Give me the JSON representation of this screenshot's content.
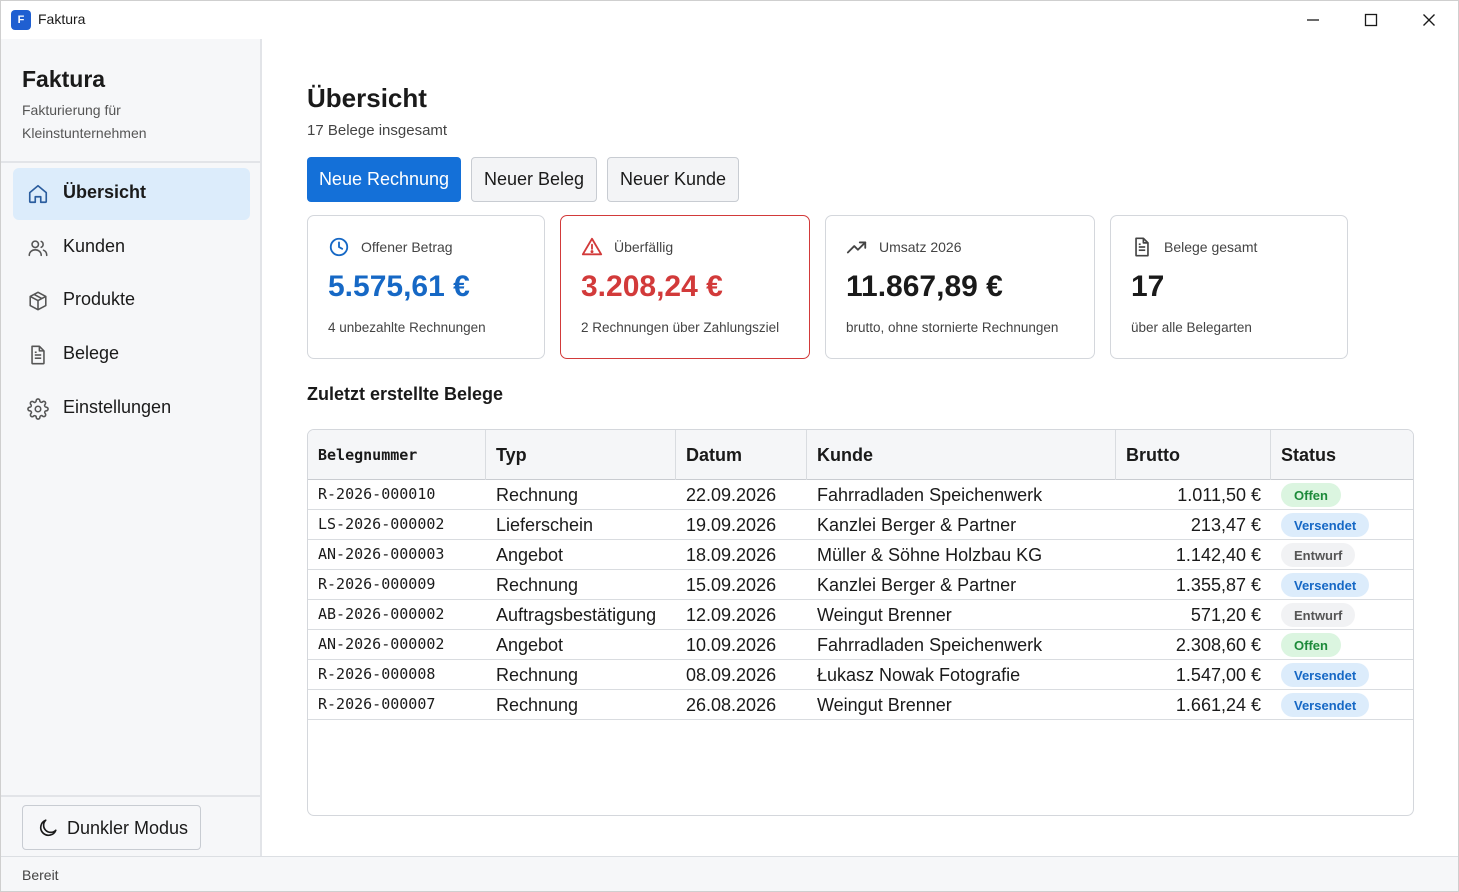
{
  "window": {
    "title": "Faktura",
    "app_icon_letter": "F"
  },
  "sidebar": {
    "brand_title": "Faktura",
    "brand_subtitle": "Fakturierung für Kleinstunternehmen",
    "items": [
      {
        "label": "Übersicht",
        "icon": "home-icon",
        "active": true
      },
      {
        "label": "Kunden",
        "icon": "users-icon",
        "active": false
      },
      {
        "label": "Produkte",
        "icon": "box-icon",
        "active": false
      },
      {
        "label": "Belege",
        "icon": "document-icon",
        "active": false
      },
      {
        "label": "Einstellungen",
        "icon": "gear-icon",
        "active": false
      }
    ],
    "dark_mode_label": "Dunkler Modus"
  },
  "main": {
    "title": "Übersicht",
    "subtitle": "17 Belege insgesamt",
    "buttons": {
      "new_invoice": "Neue Rechnung",
      "new_receipt": "Neuer Beleg",
      "new_customer": "Neuer Kunde"
    },
    "cards": [
      {
        "label": "Offener Betrag",
        "value": "5.575,61 €",
        "note": "4 unbezahlte Rechnungen",
        "icon": "clock-icon",
        "color": "#1668c5"
      },
      {
        "label": "Überfällig",
        "value": "3.208,24 €",
        "note": "2 Rechnungen über Zahlungsziel",
        "icon": "warning-icon",
        "color": "#d23a3a"
      },
      {
        "label": "Umsatz 2026",
        "value": "11.867,89 €",
        "note": "brutto, ohne stornierte Rechnungen",
        "icon": "trending-up-icon",
        "color": "#1a1a1a"
      },
      {
        "label": "Belege gesamt",
        "value": "17",
        "note": "über alle Belegarten",
        "icon": "document-icon",
        "color": "#1a1a1a"
      }
    ],
    "recent_title": "Zuletzt erstellte Belege",
    "table": {
      "headers": [
        "Belegnummer",
        "Typ",
        "Datum",
        "Kunde",
        "Brutto",
        "Status"
      ],
      "rows": [
        {
          "number": "R-2026-000010",
          "type": "Rechnung",
          "date": "22.09.2026",
          "customer": "Fahrradladen Speichenwerk",
          "gross": "1.011,50 €",
          "status": "Offen",
          "status_kind": "offen"
        },
        {
          "number": "LS-2026-000002",
          "type": "Lieferschein",
          "date": "19.09.2026",
          "customer": "Kanzlei Berger & Partner",
          "gross": "213,47 €",
          "status": "Versendet",
          "status_kind": "versendet"
        },
        {
          "number": "AN-2026-000003",
          "type": "Angebot",
          "date": "18.09.2026",
          "customer": "Müller & Söhne Holzbau KG",
          "gross": "1.142,40 €",
          "status": "Entwurf",
          "status_kind": "entwurf"
        },
        {
          "number": "R-2026-000009",
          "type": "Rechnung",
          "date": "15.09.2026",
          "customer": "Kanzlei Berger & Partner",
          "gross": "1.355,87 €",
          "status": "Versendet",
          "status_kind": "versendet"
        },
        {
          "number": "AB-2026-000002",
          "type": "Auftragsbestätigung",
          "date": "12.09.2026",
          "customer": "Weingut Brenner",
          "gross": "571,20 €",
          "status": "Entwurf",
          "status_kind": "entwurf"
        },
        {
          "number": "AN-2026-000002",
          "type": "Angebot",
          "date": "10.09.2026",
          "customer": "Fahrradladen Speichenwerk",
          "gross": "2.308,60 €",
          "status": "Offen",
          "status_kind": "offen"
        },
        {
          "number": "R-2026-000008",
          "type": "Rechnung",
          "date": "08.09.2026",
          "customer": "Łukasz Nowak Fotografie",
          "gross": "1.547,00 €",
          "status": "Versendet",
          "status_kind": "versendet"
        },
        {
          "number": "R-2026-000007",
          "type": "Rechnung",
          "date": "26.08.2026",
          "customer": "Weingut Brenner",
          "gross": "1.661,24 €",
          "status": "Versendet",
          "status_kind": "versendet"
        }
      ]
    }
  },
  "statusbar": {
    "text": "Bereit"
  }
}
